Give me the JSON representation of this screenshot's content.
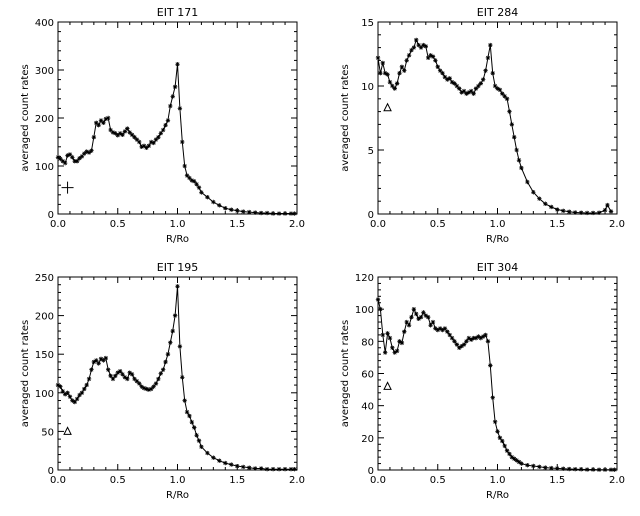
{
  "chart_data": [
    {
      "type": "line",
      "title": "EIT 171",
      "xlabel": "R/Ro",
      "ylabel": "averaged count rates",
      "xlim": [
        0,
        2
      ],
      "ylim": [
        0,
        400
      ],
      "xticks": [
        "0.0",
        "0.5",
        "1.0",
        "1.5",
        "2.0"
      ],
      "yticks": [
        "0",
        "100",
        "200",
        "300",
        "400"
      ],
      "marker_symbol": "plus",
      "marker_point": [
        0.08,
        55
      ],
      "series": [
        {
          "x": [
            0.0,
            0.02,
            0.04,
            0.06,
            0.08,
            0.1,
            0.12,
            0.14,
            0.16,
            0.18,
            0.2,
            0.22,
            0.24,
            0.26,
            0.28,
            0.3,
            0.32,
            0.34,
            0.36,
            0.38,
            0.4,
            0.42,
            0.44,
            0.46,
            0.48,
            0.5,
            0.52,
            0.54,
            0.56,
            0.58,
            0.6,
            0.62,
            0.64,
            0.66,
            0.68,
            0.7,
            0.72,
            0.74,
            0.76,
            0.78,
            0.8,
            0.82,
            0.84,
            0.86,
            0.88,
            0.9,
            0.92,
            0.94,
            0.96,
            0.98,
            1.0,
            1.02,
            1.04,
            1.06,
            1.08,
            1.1,
            1.12,
            1.14,
            1.16,
            1.18,
            1.2,
            1.25,
            1.3,
            1.35,
            1.4,
            1.45,
            1.5,
            1.55,
            1.6,
            1.65,
            1.7,
            1.75,
            1.8,
            1.85,
            1.9,
            1.95,
            1.98
          ],
          "y": [
            118,
            115,
            110,
            106,
            122,
            124,
            118,
            110,
            110,
            116,
            120,
            126,
            130,
            128,
            132,
            160,
            190,
            185,
            195,
            190,
            198,
            200,
            175,
            170,
            168,
            164,
            168,
            165,
            172,
            178,
            170,
            165,
            160,
            155,
            150,
            140,
            142,
            138,
            142,
            150,
            148,
            155,
            160,
            168,
            175,
            185,
            195,
            225,
            245,
            265,
            312,
            220,
            150,
            100,
            80,
            75,
            70,
            68,
            62,
            55,
            45,
            35,
            25,
            18,
            12,
            9,
            7,
            5,
            4,
            3,
            2,
            2,
            1,
            1,
            1,
            1,
            1
          ]
        }
      ]
    },
    {
      "type": "line",
      "title": "EIT 284",
      "xlabel": "R/Ro",
      "ylabel": "averaged count rates",
      "xlim": [
        0,
        2
      ],
      "ylim": [
        0,
        15
      ],
      "xticks": [
        "0.0",
        "0.5",
        "1.0",
        "1.5",
        "2.0"
      ],
      "yticks": [
        "0",
        "5",
        "10",
        "15"
      ],
      "marker_symbol": "triangle",
      "marker_point": [
        0.08,
        8.3
      ],
      "series": [
        {
          "x": [
            0.0,
            0.02,
            0.04,
            0.06,
            0.08,
            0.1,
            0.12,
            0.14,
            0.16,
            0.18,
            0.2,
            0.22,
            0.24,
            0.26,
            0.28,
            0.3,
            0.32,
            0.34,
            0.36,
            0.38,
            0.4,
            0.42,
            0.44,
            0.46,
            0.48,
            0.5,
            0.52,
            0.54,
            0.56,
            0.58,
            0.6,
            0.62,
            0.64,
            0.66,
            0.68,
            0.7,
            0.72,
            0.74,
            0.76,
            0.78,
            0.8,
            0.82,
            0.84,
            0.86,
            0.88,
            0.9,
            0.92,
            0.94,
            0.96,
            0.98,
            1.0,
            1.02,
            1.04,
            1.06,
            1.08,
            1.1,
            1.12,
            1.14,
            1.16,
            1.18,
            1.2,
            1.25,
            1.3,
            1.35,
            1.4,
            1.45,
            1.5,
            1.55,
            1.6,
            1.65,
            1.7,
            1.75,
            1.8,
            1.85,
            1.9,
            1.92,
            1.95
          ],
          "y": [
            12.2,
            11.0,
            11.8,
            11.0,
            10.9,
            10.3,
            10.0,
            9.8,
            10.2,
            11.0,
            11.5,
            11.2,
            12.0,
            12.4,
            12.8,
            13.0,
            13.6,
            13.2,
            13.0,
            13.2,
            13.1,
            12.2,
            12.4,
            12.3,
            12.0,
            11.5,
            11.2,
            11.0,
            10.7,
            10.5,
            10.6,
            10.3,
            10.2,
            10.0,
            9.8,
            9.5,
            9.6,
            9.4,
            9.5,
            9.6,
            9.4,
            9.8,
            10.0,
            10.2,
            10.5,
            11.2,
            12.2,
            13.2,
            11.0,
            10.0,
            9.8,
            9.7,
            9.4,
            9.2,
            9.0,
            8.0,
            7.0,
            6.0,
            5.0,
            4.2,
            3.6,
            2.5,
            1.7,
            1.2,
            0.8,
            0.55,
            0.35,
            0.25,
            0.18,
            0.12,
            0.1,
            0.08,
            0.08,
            0.1,
            0.3,
            0.7,
            0.2
          ]
        }
      ]
    },
    {
      "type": "line",
      "title": "EIT 195",
      "xlabel": "R/Ro",
      "ylabel": "averaged count rates",
      "xlim": [
        0,
        2
      ],
      "ylim": [
        0,
        250
      ],
      "xticks": [
        "0.0",
        "0.5",
        "1.0",
        "1.5",
        "2.0"
      ],
      "yticks": [
        "0",
        "50",
        "100",
        "150",
        "200",
        "250"
      ],
      "marker_symbol": "triangle",
      "marker_point": [
        0.08,
        50
      ],
      "series": [
        {
          "x": [
            0.0,
            0.02,
            0.04,
            0.06,
            0.08,
            0.1,
            0.12,
            0.14,
            0.16,
            0.18,
            0.2,
            0.22,
            0.24,
            0.26,
            0.28,
            0.3,
            0.32,
            0.34,
            0.36,
            0.38,
            0.4,
            0.42,
            0.44,
            0.46,
            0.48,
            0.5,
            0.52,
            0.54,
            0.56,
            0.58,
            0.6,
            0.62,
            0.64,
            0.66,
            0.68,
            0.7,
            0.72,
            0.74,
            0.76,
            0.78,
            0.8,
            0.82,
            0.84,
            0.86,
            0.88,
            0.9,
            0.92,
            0.94,
            0.96,
            0.98,
            1.0,
            1.02,
            1.04,
            1.06,
            1.08,
            1.1,
            1.12,
            1.14,
            1.16,
            1.18,
            1.2,
            1.25,
            1.3,
            1.35,
            1.4,
            1.45,
            1.5,
            1.55,
            1.6,
            1.65,
            1.7,
            1.75,
            1.8,
            1.85,
            1.9,
            1.95,
            1.98
          ],
          "y": [
            110,
            108,
            102,
            98,
            100,
            95,
            90,
            88,
            92,
            97,
            100,
            105,
            110,
            118,
            130,
            140,
            142,
            138,
            144,
            142,
            145,
            130,
            122,
            118,
            122,
            126,
            128,
            124,
            120,
            118,
            126,
            124,
            118,
            115,
            112,
            108,
            106,
            105,
            104,
            105,
            108,
            112,
            118,
            125,
            130,
            140,
            150,
            165,
            180,
            200,
            238,
            160,
            120,
            90,
            75,
            70,
            62,
            55,
            45,
            38,
            30,
            22,
            16,
            12,
            9,
            7,
            5,
            4,
            3,
            2,
            2,
            1,
            1,
            1,
            1,
            1,
            1
          ]
        }
      ]
    },
    {
      "type": "line",
      "title": "EIT 304",
      "xlabel": "R/Ro",
      "ylabel": "averaged count rates",
      "xlim": [
        0,
        2
      ],
      "ylim": [
        0,
        120
      ],
      "xticks": [
        "0.0",
        "0.5",
        "1.0",
        "1.5",
        "2.0"
      ],
      "yticks": [
        "0",
        "20",
        "40",
        "60",
        "80",
        "100",
        "120"
      ],
      "marker_symbol": "triangle",
      "marker_point": [
        0.08,
        52
      ],
      "series": [
        {
          "x": [
            0.0,
            0.02,
            0.04,
            0.06,
            0.08,
            0.1,
            0.12,
            0.14,
            0.16,
            0.18,
            0.2,
            0.22,
            0.24,
            0.26,
            0.28,
            0.3,
            0.32,
            0.34,
            0.36,
            0.38,
            0.4,
            0.42,
            0.44,
            0.46,
            0.48,
            0.5,
            0.52,
            0.54,
            0.56,
            0.58,
            0.6,
            0.62,
            0.64,
            0.66,
            0.68,
            0.7,
            0.72,
            0.74,
            0.76,
            0.78,
            0.8,
            0.82,
            0.84,
            0.86,
            0.88,
            0.9,
            0.92,
            0.94,
            0.96,
            0.98,
            1.0,
            1.02,
            1.04,
            1.06,
            1.08,
            1.1,
            1.12,
            1.14,
            1.16,
            1.18,
            1.2,
            1.25,
            1.3,
            1.35,
            1.4,
            1.45,
            1.5,
            1.55,
            1.6,
            1.65,
            1.7,
            1.75,
            1.8,
            1.85,
            1.9,
            1.95,
            1.98
          ],
          "y": [
            106,
            100,
            84,
            73,
            85,
            82,
            76,
            73,
            74,
            80,
            79,
            86,
            92,
            90,
            95,
            100,
            97,
            94,
            95,
            98,
            96,
            95,
            90,
            92,
            88,
            87,
            88,
            87,
            88,
            86,
            84,
            82,
            80,
            78,
            76,
            77,
            78,
            80,
            82,
            81,
            82,
            82,
            83,
            82,
            83,
            84,
            80,
            65,
            45,
            30,
            24,
            20,
            18,
            15,
            12,
            10,
            8,
            7,
            6,
            5,
            4,
            3,
            2.5,
            2,
            1.5,
            1.2,
            1,
            0.8,
            0.6,
            0.5,
            0.4,
            0.3,
            0.3,
            0.2,
            0.2,
            0.2,
            0.2
          ]
        }
      ]
    }
  ]
}
